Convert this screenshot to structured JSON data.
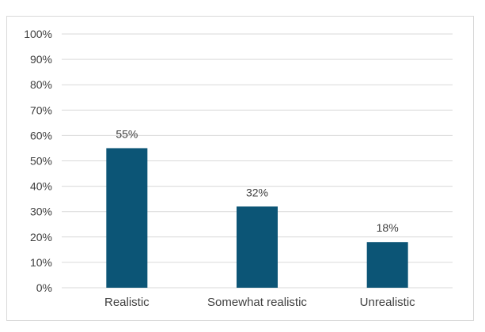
{
  "chart_data": {
    "type": "bar",
    "title": "",
    "xlabel": "",
    "ylabel": "",
    "categories": [
      "Realistic",
      "Somewhat realistic",
      "Unrealistic"
    ],
    "values": [
      55,
      32,
      18
    ],
    "data_labels": [
      "55%",
      "32%",
      "18%"
    ],
    "ylim": [
      0,
      100
    ],
    "yticks": [
      0,
      10,
      20,
      30,
      40,
      50,
      60,
      70,
      80,
      90,
      100
    ],
    "ytick_labels": [
      "0%",
      "10%",
      "20%",
      "30%",
      "40%",
      "50%",
      "60%",
      "70%",
      "80%",
      "90%",
      "100%"
    ],
    "grid": true,
    "legend": "none",
    "bar_color": "#0c5576",
    "grid_color": "#d9d9d9"
  }
}
